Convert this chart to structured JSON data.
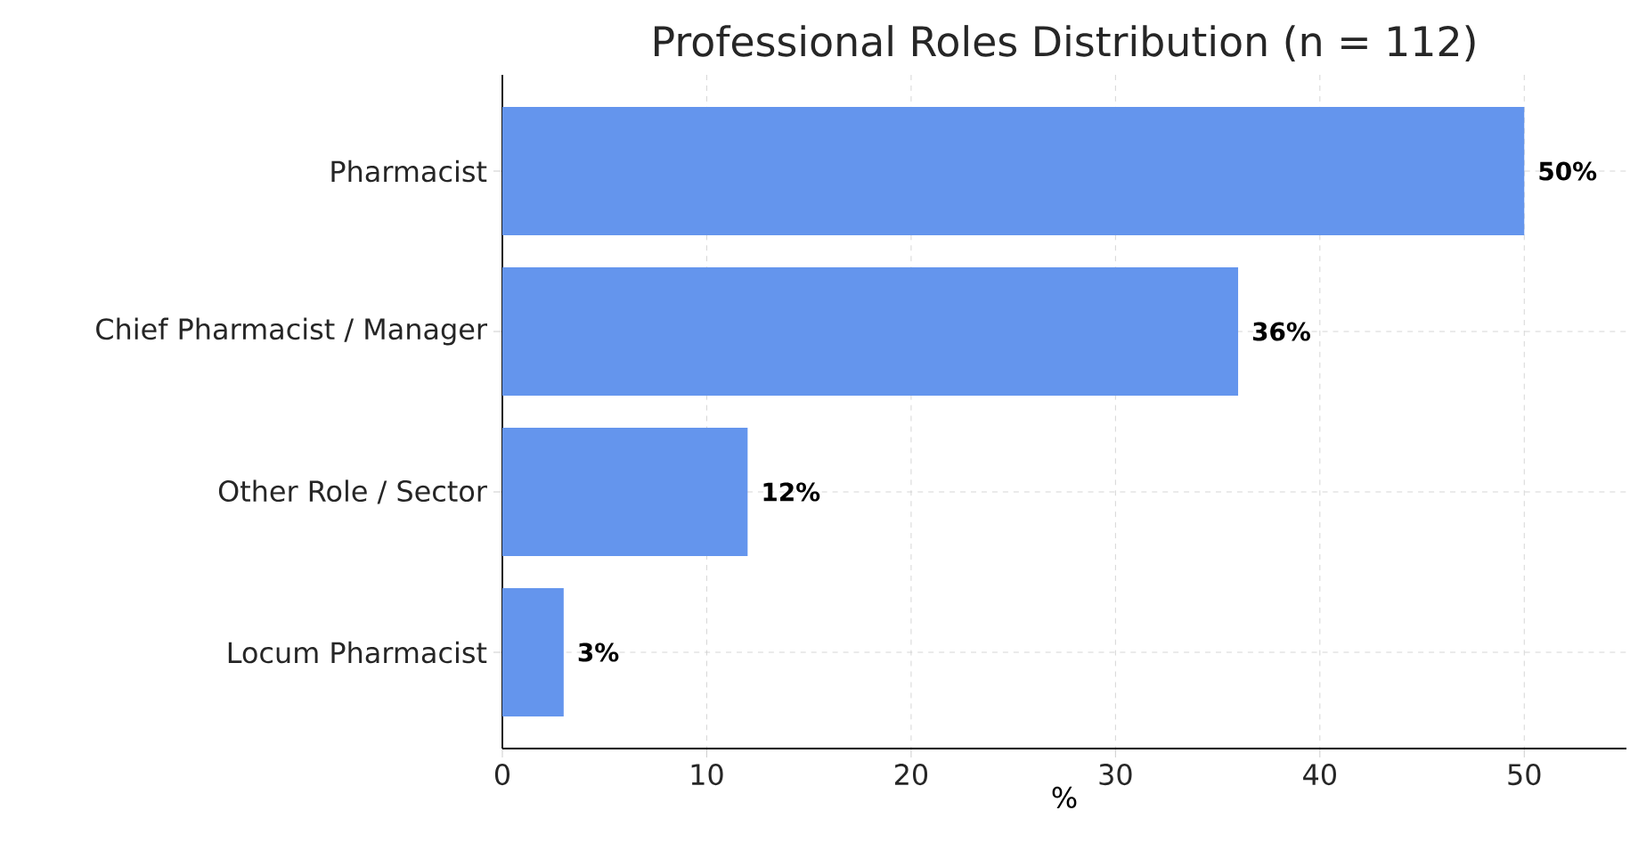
{
  "chart_data": {
    "type": "bar",
    "orientation": "horizontal",
    "title": "Professional Roles Distribution (n = 112)",
    "xlabel": "%",
    "categories": [
      "Pharmacist",
      "Chief Pharmacist / Manager",
      "Other Role / Sector",
      "Locum Pharmacist"
    ],
    "values": [
      50,
      36,
      12,
      3
    ],
    "value_labels": [
      "50%",
      "36%",
      "12%",
      "3%"
    ],
    "color": "#6495ed",
    "xlim": [
      0,
      55
    ],
    "xticks": [
      0,
      10,
      20,
      30,
      40,
      50
    ],
    "grid": true
  }
}
